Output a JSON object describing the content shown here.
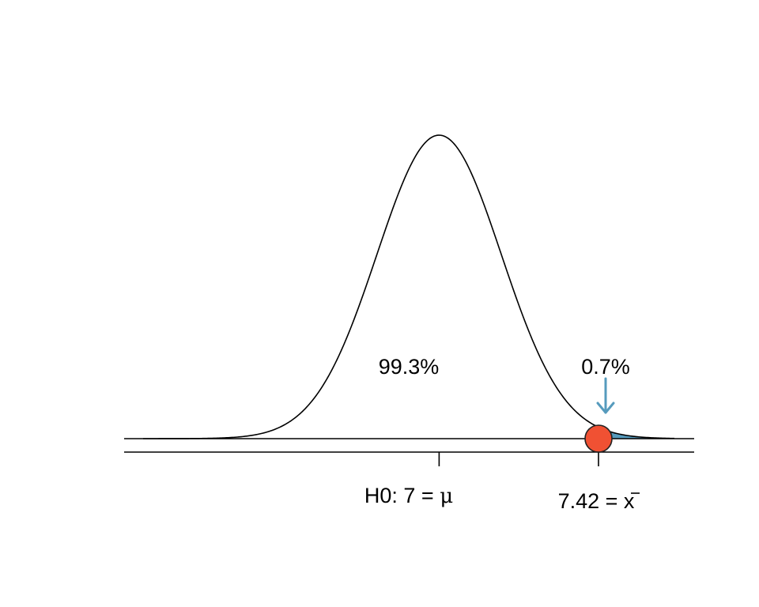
{
  "chart_data": {
    "type": "area",
    "distribution": "normal",
    "mean": 7,
    "observed": 7.42,
    "xlim": [
      6.22,
      7.62
    ],
    "shaded_tail": "right",
    "labels": {
      "center_pct": "99.3%",
      "tail_pct": "0.7%",
      "mean_label_prefix": "H0: 7 = ",
      "mean_symbol": "μ",
      "observed_label_prefix": "7.42 = ",
      "observed_symbol": "x"
    },
    "colors": {
      "curve": "#000000",
      "tail_fill": "#569BBD",
      "arrow": "#569BBD",
      "point_fill": "#F05133",
      "point_stroke": "#222222"
    }
  }
}
